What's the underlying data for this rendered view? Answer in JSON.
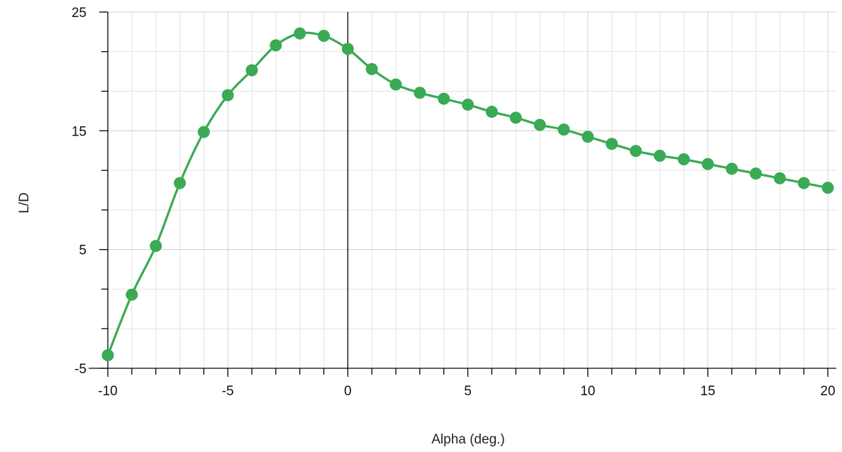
{
  "chart_data": {
    "type": "line",
    "xlabel": "Alpha (deg.)",
    "ylabel": "L/D",
    "xlim": [
      -10,
      20
    ],
    "ylim": [
      -5,
      25
    ],
    "x_ticks": [
      -10,
      -5,
      0,
      5,
      10,
      15,
      20
    ],
    "y_ticks": [
      -5,
      5,
      15,
      25
    ],
    "x_tick_labels": [
      "-10",
      "-5",
      "0",
      "5",
      "10",
      "15",
      "20"
    ],
    "y_tick_labels": [
      "-5",
      "5",
      "15",
      "25"
    ],
    "x_minor_step": 1,
    "y_minor_step": 3.3333,
    "grid": true,
    "smooth": true,
    "marker": "circle",
    "series": [
      {
        "color": "#3aaa55",
        "x": [
          -10,
          -9,
          -8,
          -7,
          -6,
          -5,
          -4,
          -3,
          -2,
          -1,
          0,
          1,
          2,
          3,
          4,
          5,
          6,
          7,
          8,
          9,
          10,
          11,
          12,
          13,
          14,
          15,
          16,
          17,
          18,
          19,
          20
        ],
        "values": [
          -3.9,
          1.2,
          5.3,
          10.6,
          14.9,
          18.0,
          20.1,
          22.2,
          23.2,
          23.0,
          21.9,
          20.2,
          18.9,
          18.2,
          17.7,
          17.2,
          16.6,
          16.1,
          15.5,
          15.1,
          14.5,
          13.9,
          13.3,
          12.9,
          12.6,
          12.2,
          11.8,
          11.4,
          11.0,
          10.6,
          10.2
        ]
      }
    ]
  }
}
